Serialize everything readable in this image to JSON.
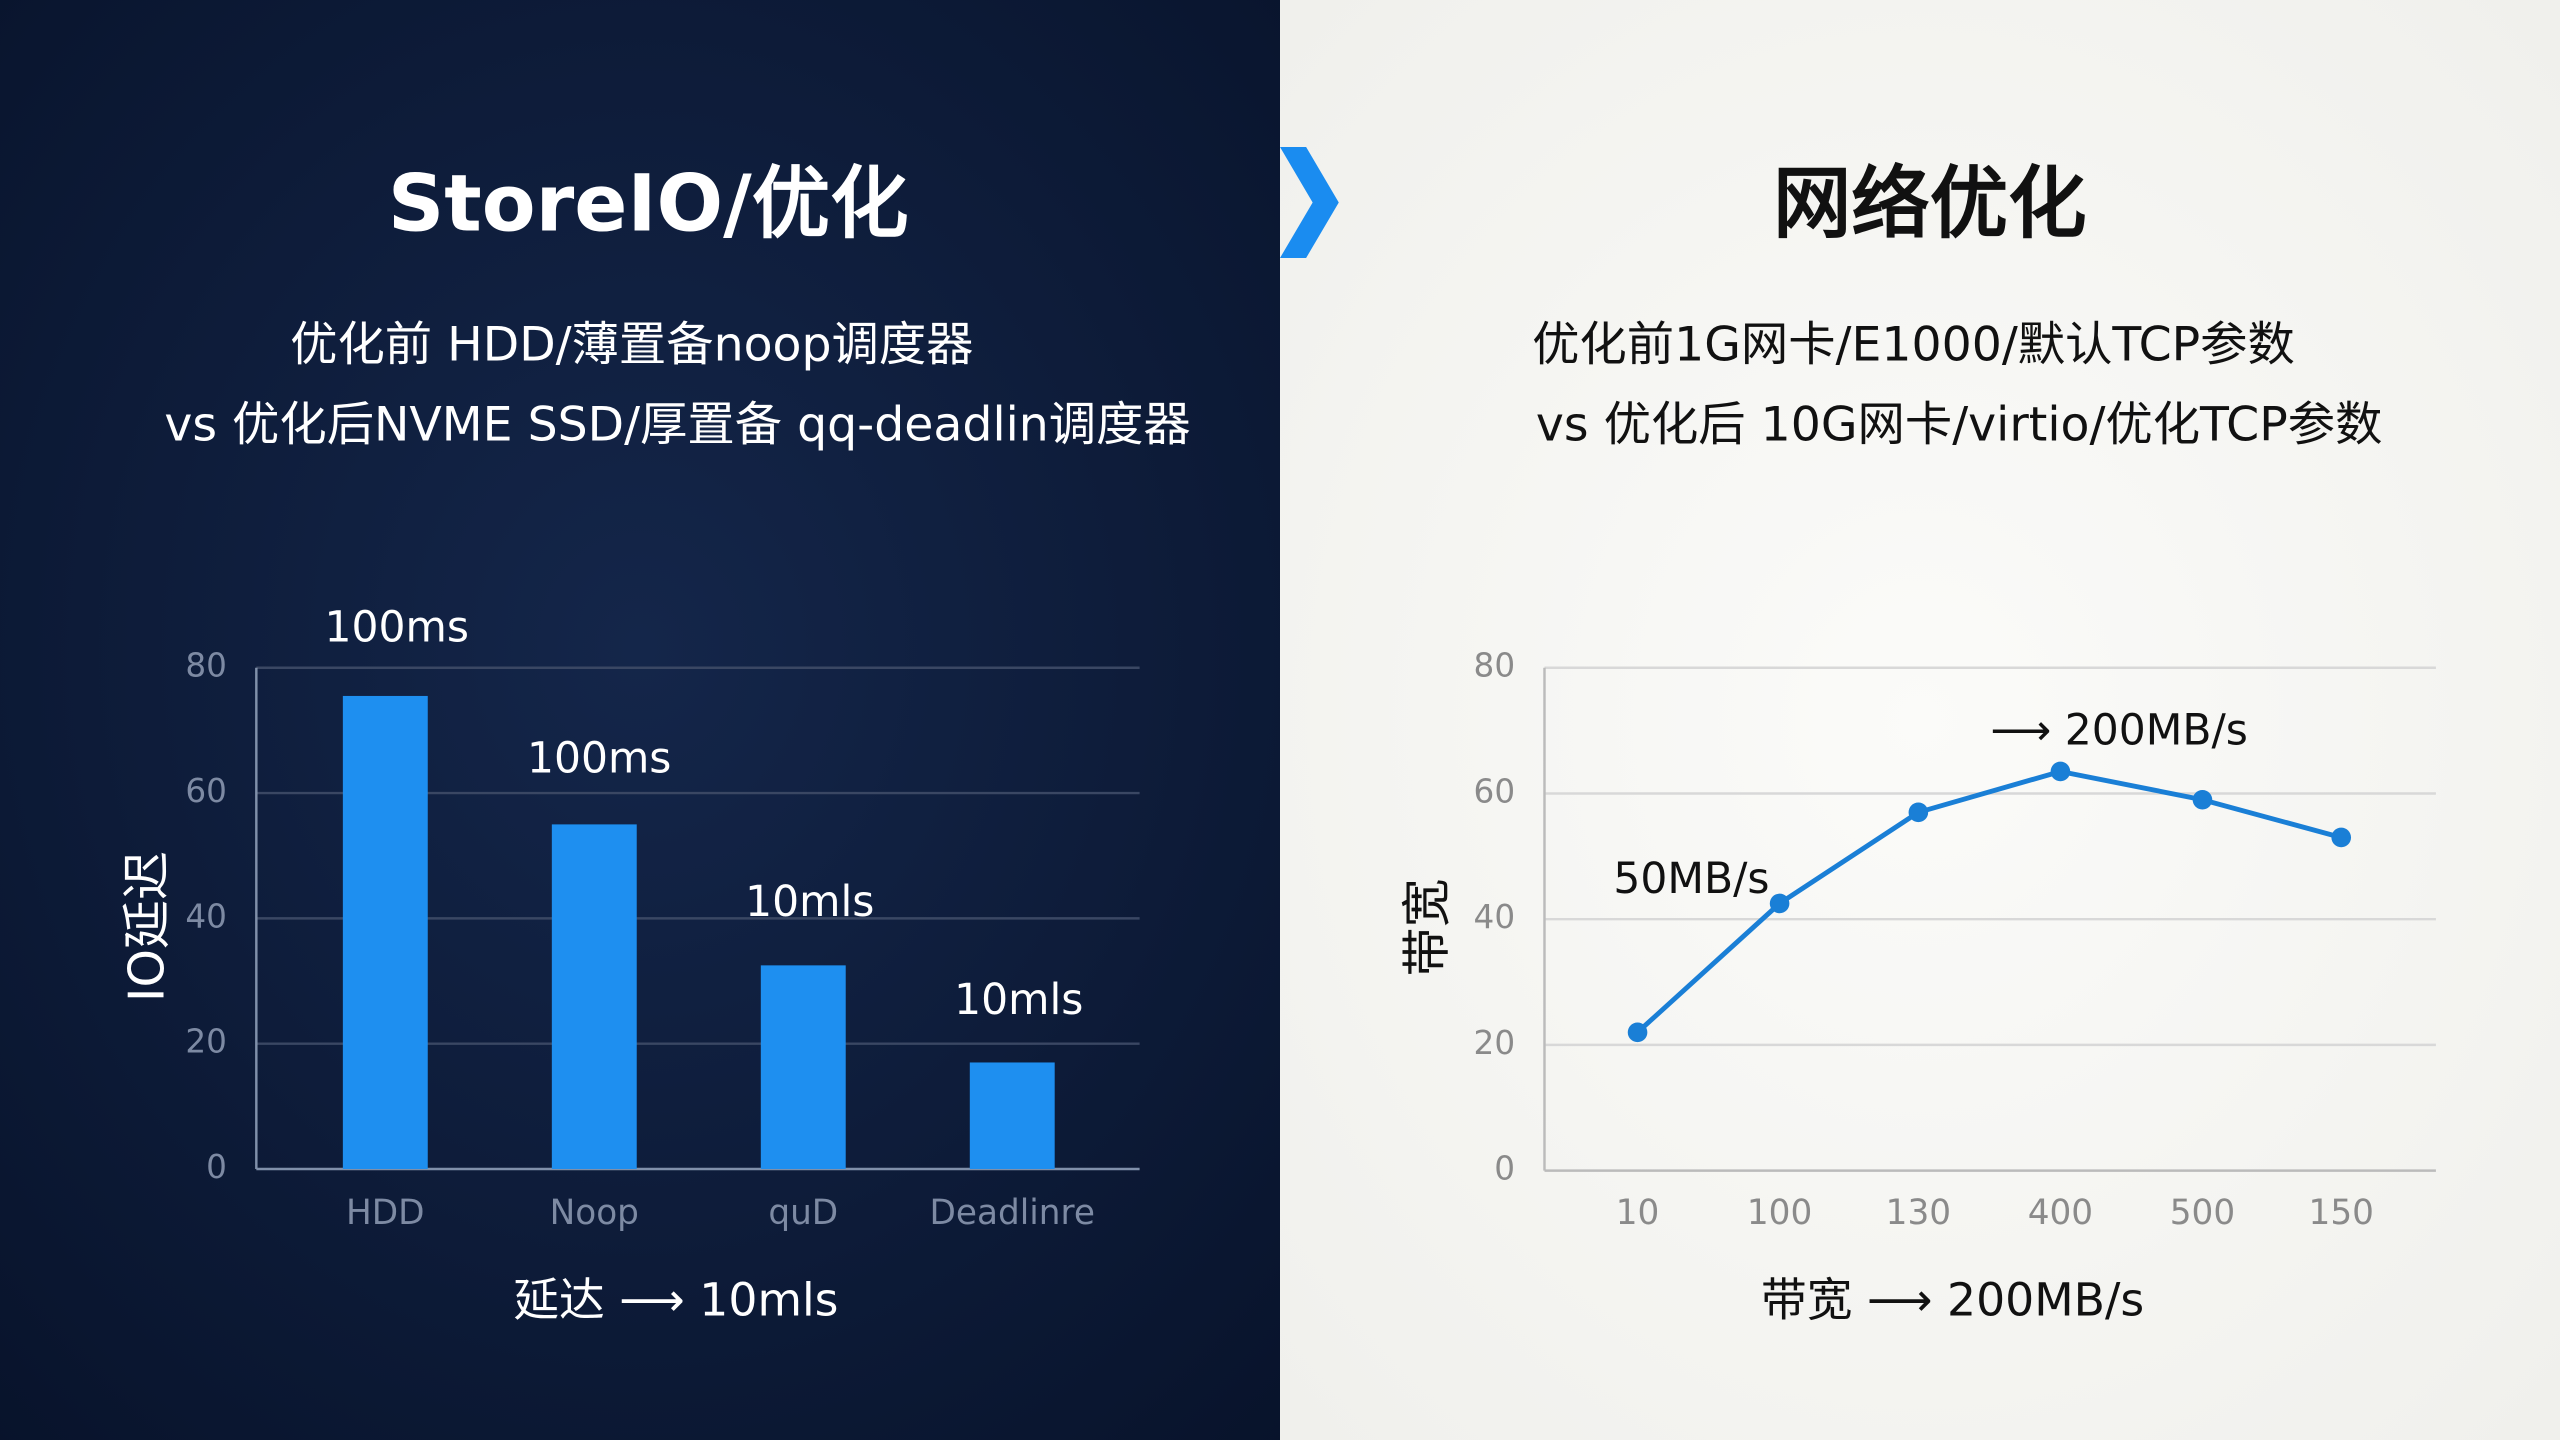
{
  "chart_data": [
    {
      "type": "bar",
      "title": "StoreIO/优化",
      "subtitle": [
        "优化前 HDD/薄置备noop调度器",
        "vs 优化后NVME SSD/厚置备 qq-deadlin调度器"
      ],
      "y_label": "IO延迟",
      "categories": [
        "HDD",
        "Noop",
        "quD",
        "Deadlinre"
      ],
      "values": [
        75.5,
        55,
        32.5,
        17
      ],
      "color": "#1e8ff0",
      "annotations": [
        "100ms",
        "100ms",
        "10mls",
        "10mls"
      ],
      "ylim": [
        0,
        80
      ],
      "yticks": [
        0,
        20,
        40,
        60,
        80
      ],
      "grid": true,
      "footnote": "延达 ⟶ 10mls"
    },
    {
      "type": "line",
      "title": "网络优化",
      "subtitle": [
        "优化前1G网卡/E1000/默认TCP参数",
        "vs 优化后 10G网卡/virtio/优化TCP参数"
      ],
      "y_label": "带宽",
      "categories": [
        "10",
        "100",
        "130",
        "400",
        "500",
        "150"
      ],
      "values": [
        22,
        42.5,
        57,
        63.5,
        59,
        53
      ],
      "color": "#1a7fd6",
      "annotations": [
        "50MB/s",
        "⟶ 200MB/s"
      ],
      "ylim": [
        0,
        80
      ],
      "yticks": [
        0,
        20,
        40,
        60,
        80
      ],
      "grid": true,
      "footnote": "带宽 ⟶ 200MB/s"
    }
  ]
}
